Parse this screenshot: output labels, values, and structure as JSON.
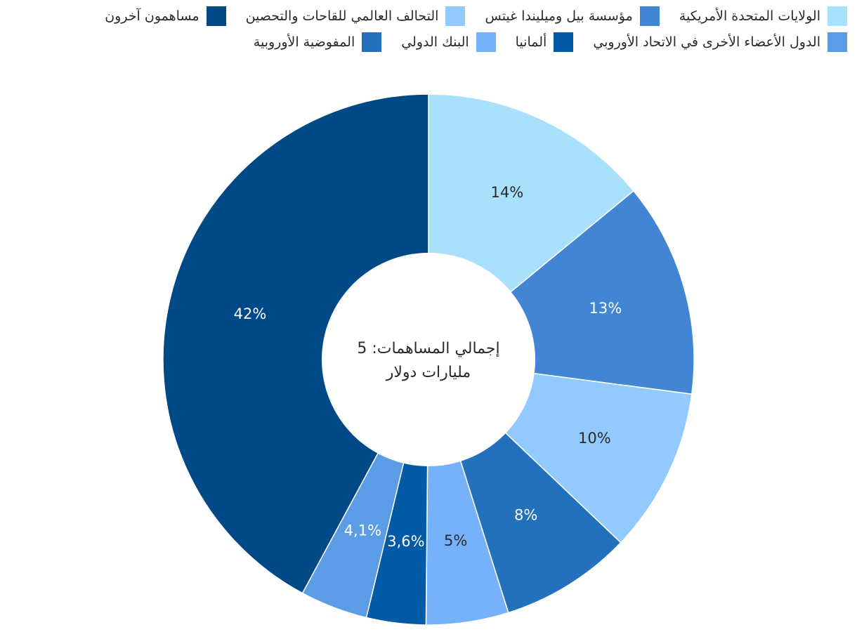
{
  "chart_data": {
    "type": "pie",
    "donut": true,
    "center_label": {
      "line1": "إجمالي المساهمات: 5",
      "line2": "مليارات دولار"
    },
    "slices": [
      {
        "name": "الولايات المتحدة الأمريكية",
        "value": 14,
        "label": "14%",
        "color": "#a8e0fd",
        "text_color": "#2a2a2a"
      },
      {
        "name": "مؤسسة بيل وميليندا غيتس",
        "value": 13,
        "label": "13%",
        "color": "#4286d3",
        "text_color": "#ffffff"
      },
      {
        "name": "التحالف العالمي للقاحات والتحصين",
        "value": 10,
        "label": "10%",
        "color": "#92caff",
        "text_color": "#2a2a2a"
      },
      {
        "name": "المفوضية الأوروبية",
        "value": 8,
        "label": "8%",
        "color": "#2371bc",
        "text_color": "#ffffff"
      },
      {
        "name": "البنك الدولي",
        "value": 5,
        "label": "5%",
        "color": "#76b1fb",
        "text_color": "#2a2a2a"
      },
      {
        "name": "ألمانيا",
        "value": 3.6,
        "label": "3,6%",
        "color": "#035aa6",
        "text_color": "#ffffff"
      },
      {
        "name": "الدول الأعضاء الأخرى في الاتحاد الأوروبي",
        "value": 4.1,
        "label": "4,1%",
        "color": "#5a9ce6",
        "text_color": "#ffffff"
      },
      {
        "name": "مساهمون آخرون",
        "value": 42,
        "label": "42%",
        "color": "#004987",
        "text_color": "#ffffff"
      }
    ],
    "legend_order": [
      0,
      1,
      2,
      7,
      6,
      5,
      4,
      3
    ],
    "legend_placement": "top"
  }
}
